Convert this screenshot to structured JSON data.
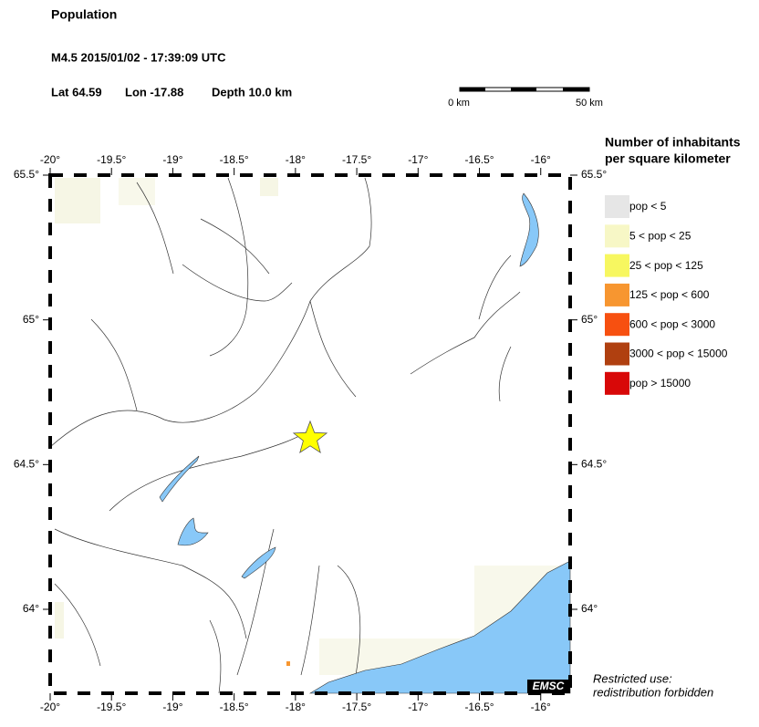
{
  "header": {
    "title": "Population",
    "event": "M4.5  2015/01/02 - 17:39:09 UTC",
    "lat": {
      "value": 64.59,
      "label": "Lat 64.59"
    },
    "lon": {
      "value": -17.88,
      "label": "Lon -17.88"
    },
    "depth": "Depth  10.0 km"
  },
  "scale_bar": {
    "start": "0 km",
    "end": "50 km"
  },
  "map": {
    "xlim": [
      -20,
      -15.76
    ],
    "ylim": [
      63.71,
      65.5
    ],
    "xticks": [
      {
        "value": -20,
        "label": "-20°"
      },
      {
        "value": -19.5,
        "label": "-19.5°"
      },
      {
        "value": -19,
        "label": "-19°"
      },
      {
        "value": -18.5,
        "label": "-18.5°"
      },
      {
        "value": -18,
        "label": "-18°"
      },
      {
        "value": -17.5,
        "label": "-17.5°"
      },
      {
        "value": -17,
        "label": "-17°"
      },
      {
        "value": -16.5,
        "label": "-16.5°"
      },
      {
        "value": -16,
        "label": "-16°"
      }
    ],
    "yticks": [
      {
        "value": 65.5,
        "label": "65.5°"
      },
      {
        "value": 65,
        "label": "65°"
      },
      {
        "value": 64.5,
        "label": "64.5°"
      },
      {
        "value": 64,
        "label": "64°"
      }
    ],
    "star_color": "#ffff00",
    "credit": "EMSC"
  },
  "legend": {
    "title": [
      "Number of inhabitants",
      "per square kilometer"
    ],
    "items": [
      {
        "label": "pop < 5",
        "color": "#e6e6e6"
      },
      {
        "label": "5 < pop < 25",
        "color": "#f7f7c6"
      },
      {
        "label": "25 < pop < 125",
        "color": "#f7f760"
      },
      {
        "label": "125 < pop < 600",
        "color": "#f79630"
      },
      {
        "label": "600 < pop < 3000",
        "color": "#f75010"
      },
      {
        "label": "3000 < pop < 15000",
        "color": "#b04010"
      },
      {
        "label": "pop > 15000",
        "color": "#d80808"
      }
    ]
  },
  "notice": [
    "Restricted use:",
    "redistribution forbidden"
  ]
}
